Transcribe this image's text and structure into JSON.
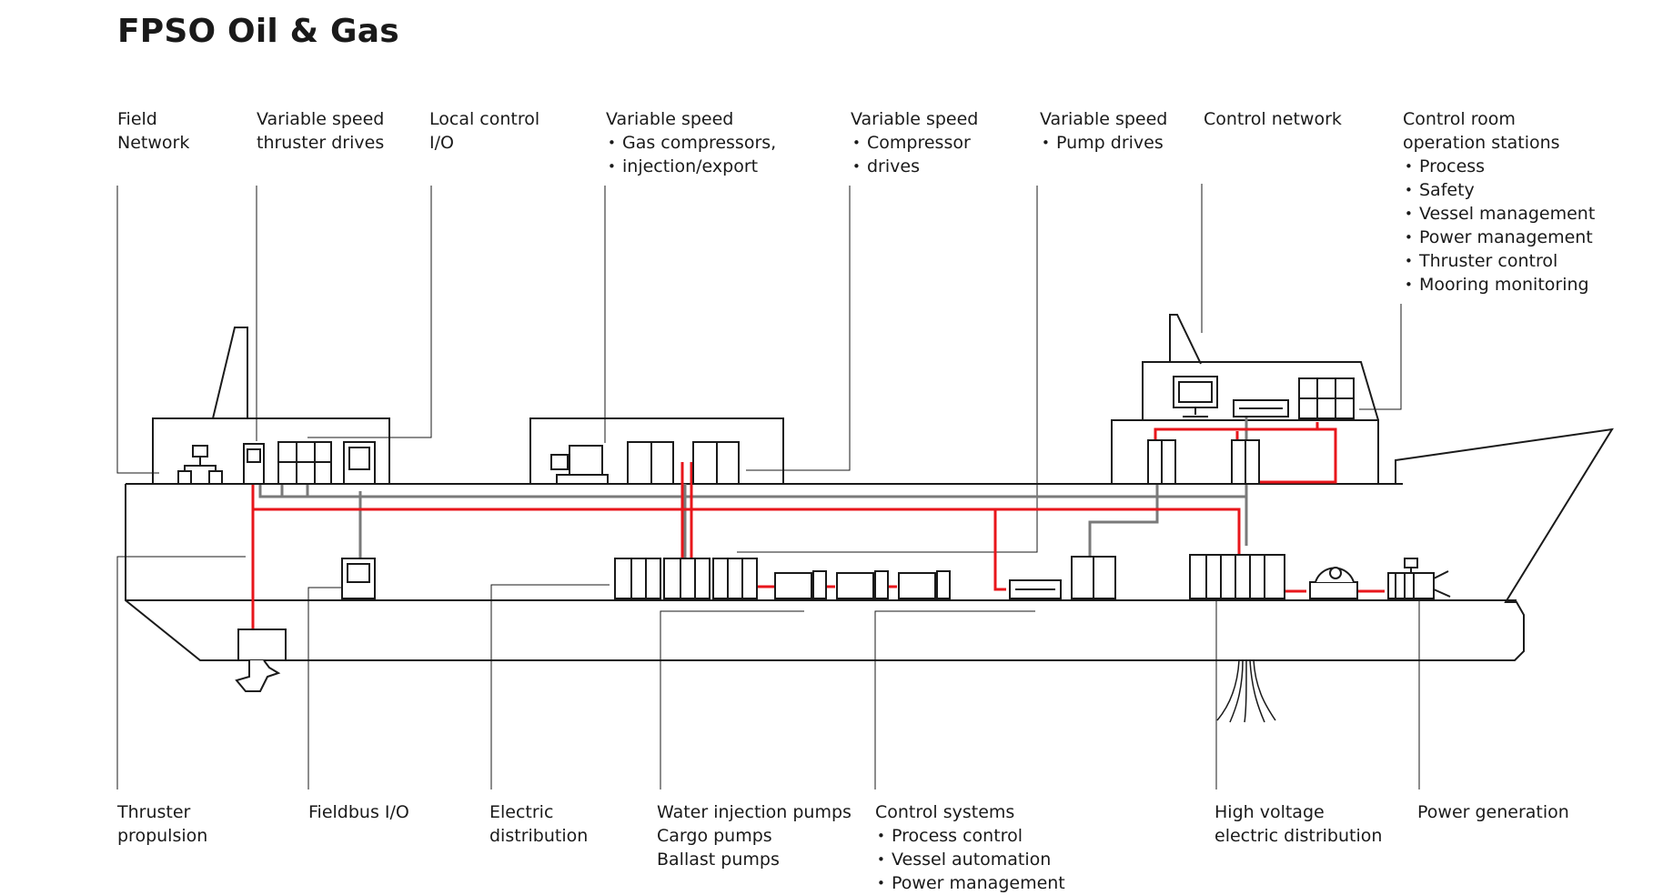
{
  "title": "FPSO Oil & Gas",
  "labels": {
    "field_network": [
      "Field",
      "Network"
    ],
    "thruster_drives": [
      "Variable speed",
      "thruster drives"
    ],
    "local_control": [
      "Local control",
      "I/O"
    ],
    "gas_compressors": {
      "heading": "Variable speed",
      "items": [
        "Gas compressors,",
        "injection/export"
      ]
    },
    "compressor_drives": {
      "heading": "Variable speed",
      "items": [
        "Compressor",
        "drives"
      ]
    },
    "pump_drives": {
      "heading": "Variable speed",
      "items": [
        "Pump drives"
      ]
    },
    "control_network": [
      "Control network"
    ],
    "control_room": {
      "heading": [
        "Control room",
        "operation stations"
      ],
      "items": [
        "Process",
        "Safety",
        "Vessel management",
        "Power management",
        "Thruster control",
        "Mooring monitoring"
      ]
    },
    "thruster_propulsion": [
      "Thruster",
      "propulsion"
    ],
    "fieldbus_io": [
      "Fieldbus I/O"
    ],
    "electric_distribution": [
      "Electric",
      "distribution"
    ],
    "pumps": [
      "Water injection pumps",
      "Cargo pumps",
      "Ballast pumps"
    ],
    "control_systems": {
      "heading": "Control systems",
      "items": [
        "Process control",
        "Vessel automation",
        "Power management"
      ]
    },
    "hv_distribution": [
      "High voltage",
      "electric distribution"
    ],
    "power_generation": [
      "Power generation"
    ]
  },
  "colors": {
    "outline": "#1a1a1a",
    "power_line": "#e8161b",
    "network_line": "#7a7a7a",
    "text": "#1a1a1a"
  }
}
